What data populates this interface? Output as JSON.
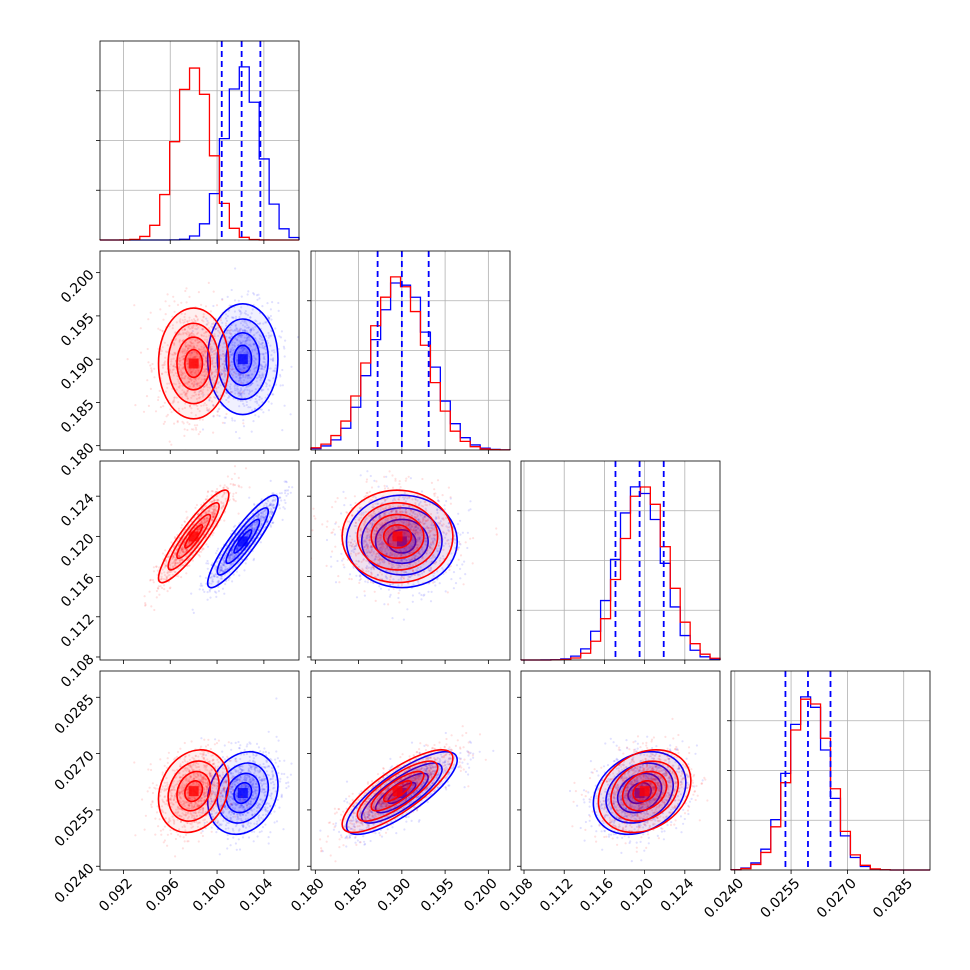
{
  "chart_data": {
    "type": "corner",
    "parameters": [
      {
        "range": [
          0.09,
          0.107
        ],
        "ticks": [
          "0.092",
          "0.096",
          "0.100",
          "0.104"
        ],
        "tick_values": [
          0.092,
          0.096,
          0.1,
          0.104
        ]
      },
      {
        "range": [
          0.1795,
          0.2025
        ],
        "ticks": [
          "0.180",
          "0.185",
          "0.190",
          "0.195",
          "0.200"
        ],
        "tick_values": [
          0.18,
          0.185,
          0.19,
          0.195,
          0.2
        ]
      },
      {
        "range": [
          0.1077,
          0.1275
        ],
        "ticks": [
          "0.108",
          "0.112",
          "0.116",
          "0.120",
          "0.124"
        ],
        "tick_values": [
          0.108,
          0.112,
          0.116,
          0.12,
          0.124
        ]
      },
      {
        "range": [
          0.0239,
          0.0292
        ],
        "ticks": [
          "0.0240",
          "0.0255",
          "0.0270",
          "0.0285"
        ],
        "tick_values": [
          0.024,
          0.0255,
          0.027,
          0.0285
        ]
      }
    ],
    "series": [
      {
        "color": "#0000ff",
        "mean": [
          0.1022,
          0.19,
          0.1195,
          0.02595
        ],
        "sd": [
          0.0015,
          0.0032,
          0.0023,
          0.00055
        ],
        "corr": [
          [
            1,
            0.0,
            0.9,
            0.2
          ],
          [
            0.0,
            1,
            0.0,
            0.8
          ],
          [
            0.9,
            0.0,
            1,
            0.25
          ],
          [
            0.2,
            0.8,
            0.25,
            1
          ]
        ]
      },
      {
        "color": "#ff0000",
        "mean": [
          0.098,
          0.1895,
          0.12,
          0.026
        ],
        "sd": [
          0.0015,
          0.0032,
          0.0023,
          0.00055
        ],
        "corr": [
          [
            1,
            0.0,
            0.9,
            0.2
          ],
          [
            0.0,
            1,
            0.0,
            0.8
          ],
          [
            0.9,
            0.0,
            1,
            0.25
          ],
          [
            0.2,
            0.8,
            0.25,
            1
          ]
        ]
      }
    ],
    "quantile_lines": {
      "color": "#0000ff",
      "values": [
        [
          0.1004,
          0.1021,
          0.1037
        ],
        [
          0.1872,
          0.19,
          0.1931
        ],
        [
          0.1171,
          0.1195,
          0.1219
        ],
        [
          0.02535,
          0.02595,
          0.02655
        ]
      ]
    }
  }
}
